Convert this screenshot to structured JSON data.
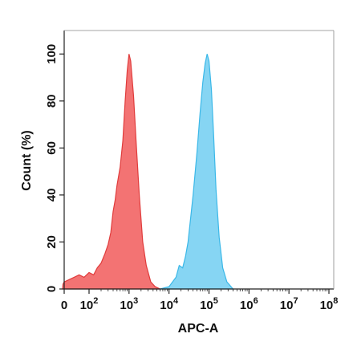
{
  "chart_data": {
    "type": "area",
    "xlabel": "APC-A",
    "ylabel": "Count (%)",
    "x_scale": "biexponential",
    "ylim": [
      0,
      110
    ],
    "y_ticks": [
      0,
      20,
      40,
      60,
      80,
      100
    ],
    "x_ticks": [
      {
        "value": 0,
        "base": "0",
        "exp": ""
      },
      {
        "value": 100,
        "base": "10",
        "exp": "2"
      },
      {
        "value": 1000,
        "base": "10",
        "exp": "3"
      },
      {
        "value": 10000,
        "base": "10",
        "exp": "4"
      },
      {
        "value": 100000,
        "base": "10",
        "exp": "5"
      },
      {
        "value": 1000000,
        "base": "10",
        "exp": "6"
      },
      {
        "value": 10000000,
        "base": "10",
        "exp": "7"
      },
      {
        "value": 100000000,
        "base": "10",
        "exp": "8"
      }
    ],
    "series": [
      {
        "color": "#f26b6b",
        "stroke": "#e03c3c",
        "points": [
          [
            -15,
            0
          ],
          [
            -5,
            2
          ],
          [
            0,
            3
          ],
          [
            20,
            4
          ],
          [
            40,
            5
          ],
          [
            60,
            6
          ],
          [
            80,
            5
          ],
          [
            100,
            7
          ],
          [
            130,
            6
          ],
          [
            160,
            9
          ],
          [
            200,
            11
          ],
          [
            250,
            15
          ],
          [
            300,
            19
          ],
          [
            350,
            24
          ],
          [
            400,
            33
          ],
          [
            450,
            38
          ],
          [
            500,
            44
          ],
          [
            600,
            52
          ],
          [
            700,
            63
          ],
          [
            800,
            80
          ],
          [
            900,
            93
          ],
          [
            1000,
            100
          ],
          [
            1100,
            97
          ],
          [
            1300,
            82
          ],
          [
            1500,
            63
          ],
          [
            1800,
            40
          ],
          [
            2200,
            20
          ],
          [
            2700,
            10
          ],
          [
            3500,
            3
          ],
          [
            4500,
            1
          ],
          [
            6000,
            0
          ]
        ]
      },
      {
        "color": "#7fd3f2",
        "stroke": "#3bb8e8",
        "points": [
          [
            6000,
            0
          ],
          [
            10000,
            1
          ],
          [
            15000,
            5
          ],
          [
            18000,
            10
          ],
          [
            22000,
            9
          ],
          [
            26000,
            14
          ],
          [
            30000,
            20
          ],
          [
            40000,
            40
          ],
          [
            50000,
            58
          ],
          [
            60000,
            75
          ],
          [
            70000,
            88
          ],
          [
            80000,
            96
          ],
          [
            90000,
            100
          ],
          [
            100000,
            97
          ],
          [
            115000,
            85
          ],
          [
            130000,
            66
          ],
          [
            150000,
            42
          ],
          [
            180000,
            22
          ],
          [
            220000,
            9
          ],
          [
            280000,
            3
          ],
          [
            400000,
            0
          ]
        ]
      }
    ]
  }
}
